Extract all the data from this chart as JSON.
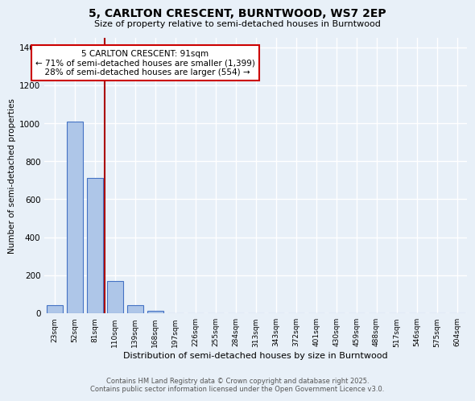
{
  "title": "5, CARLTON CRESCENT, BURNTWOOD, WS7 2EP",
  "subtitle": "Size of property relative to semi-detached houses in Burntwood",
  "xlabel": "Distribution of semi-detached houses by size in Burntwood",
  "ylabel": "Number of semi-detached properties",
  "footer_line1": "Contains HM Land Registry data © Crown copyright and database right 2025.",
  "footer_line2": "Contains public sector information licensed under the Open Government Licence v3.0.",
  "bin_labels": [
    "23sqm",
    "52sqm",
    "81sqm",
    "110sqm",
    "139sqm",
    "168sqm",
    "197sqm",
    "226sqm",
    "255sqm",
    "284sqm",
    "313sqm",
    "343sqm",
    "372sqm",
    "401sqm",
    "430sqm",
    "459sqm",
    "488sqm",
    "517sqm",
    "546sqm",
    "575sqm",
    "604sqm"
  ],
  "bar_values": [
    40,
    1010,
    710,
    170,
    40,
    10,
    0,
    0,
    0,
    0,
    0,
    0,
    0,
    0,
    0,
    0,
    0,
    0,
    0,
    0,
    0
  ],
  "bar_color": "#aec6e8",
  "bar_edge_color": "#4472c4",
  "background_color": "#e8f0f8",
  "grid_color": "#d0dce8",
  "red_line_x": 2.48,
  "annotation_text": "5 CARLTON CRESCENT: 91sqm\n← 71% of semi-detached houses are smaller (1,399)\n  28% of semi-detached houses are larger (554) →",
  "annotation_box_color": "#ffffff",
  "annotation_box_edge": "#cc0000",
  "ylim": [
    0,
    1450
  ],
  "yticks": [
    0,
    200,
    400,
    600,
    800,
    1000,
    1200,
    1400
  ]
}
